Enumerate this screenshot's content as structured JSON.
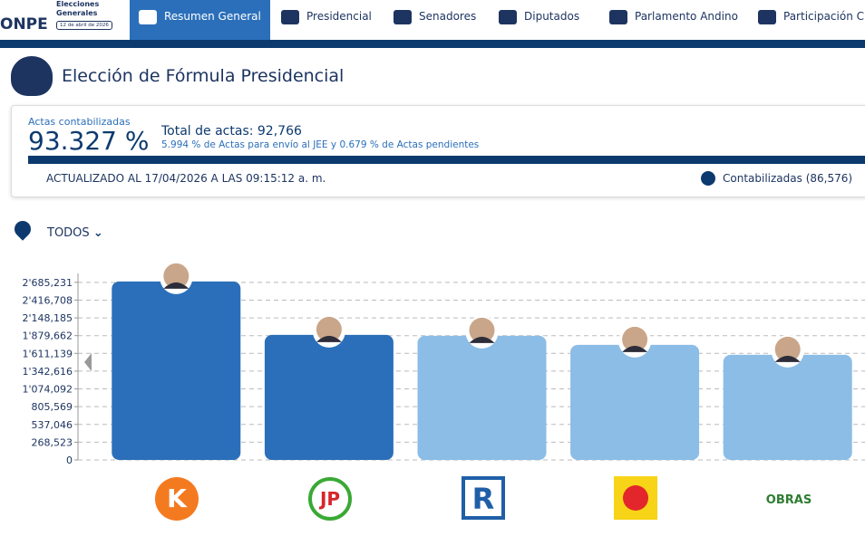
{
  "nav": {
    "logo": "ONPE",
    "election": "Elecciones Generales",
    "date": "12 de abril de 2026",
    "tabs": [
      "Resumen General",
      "Presidencial",
      "Senadores",
      "Diputados",
      "Parlamento Andino",
      "Participación C"
    ]
  },
  "title": "Elección de Fórmula Presidencial",
  "summary": {
    "actas_label": "Actas contabilizadas",
    "percent": "93.327 %",
    "total": "Total de actas: 92,766",
    "detail": "5.994 % de Actas para envío al JEE y 0.679 % de Actas pendientes",
    "updated": "ACTUALIZADO AL 17/04/2026 A LAS 09:15:12 a. m.",
    "legend": "Contabilizadas (86,576)"
  },
  "filter": "TODOS",
  "logos": {
    "k": "K",
    "jp": "JP",
    "r": "R",
    "obras": "OBRAS"
  },
  "chart_data": {
    "type": "bar",
    "categories": [
      null,
      null,
      null,
      null,
      null
    ],
    "values": [
      2699000,
      1890600,
      1876900,
      1739900,
      1589200
    ],
    "colors": [
      "#2b6fba",
      "#2b6fba",
      "#8bbde6",
      "#8bbde6",
      "#8bbde6"
    ],
    "ylim": [
      0,
      2820000
    ],
    "yticks": [
      0,
      {
        "value": 268523,
        "label": "268,523"
      },
      {
        "value": 537046,
        "label": "537,046"
      },
      {
        "value": 805569,
        "label": "805,569"
      },
      {
        "value": 1074092,
        "label": "1'074,092"
      },
      {
        "value": 1342616,
        "label": "1'342,616"
      },
      {
        "value": 1611139,
        "label": "1'611,139"
      },
      {
        "value": 1879662,
        "label": "1'879,662"
      },
      {
        "value": 2148185,
        "label": "2'148,185"
      },
      {
        "value": 2416708,
        "label": "2'416,708"
      },
      {
        "value": 2685231,
        "label": "2'685,231"
      }
    ],
    "grid": true
  }
}
